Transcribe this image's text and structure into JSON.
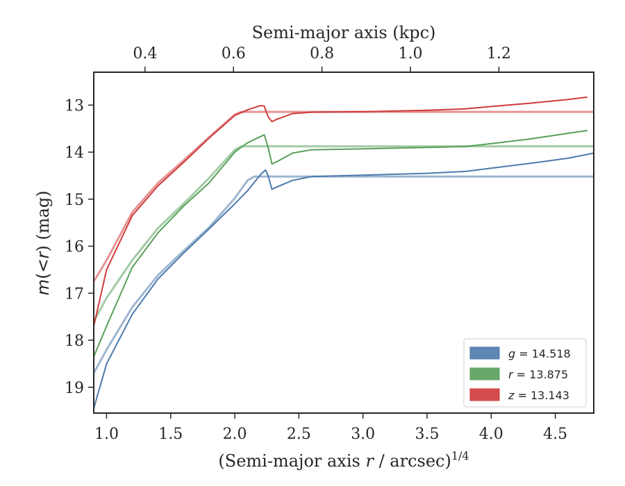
{
  "chart_data": {
    "type": "line",
    "xlabel": "(Semi-major axis r / arcsec)^1/4",
    "xlabel_parts": {
      "prefix": "(Semi-major axis ",
      "var": "r",
      "mid": " / arcsec)",
      "sup": "1/4"
    },
    "ylabel": "m(< r) (mag)",
    "ylabel_parts": {
      "m": "m",
      "lt": "(<",
      "r": "r",
      "rest": ") (mag)"
    },
    "top_xlabel": "Semi-major axis (kpc)",
    "xlim": [
      0.9,
      4.8
    ],
    "ylim": [
      19.55,
      12.3
    ],
    "y_inverted": true,
    "x_ticks": [
      1.0,
      1.5,
      2.0,
      2.5,
      3.0,
      3.5,
      4.0,
      4.5
    ],
    "x_tick_labels": [
      "1.0",
      "1.5",
      "2.0",
      "2.5",
      "3.0",
      "3.5",
      "4.0",
      "4.5"
    ],
    "y_ticks": [
      13,
      14,
      15,
      16,
      17,
      18,
      19
    ],
    "y_tick_labels": [
      "13",
      "14",
      "15",
      "16",
      "17",
      "18",
      "19"
    ],
    "top_ticks": [
      {
        "label": "0.4",
        "x": 1.3
      },
      {
        "label": "0.6",
        "x": 1.99
      },
      {
        "label": "0.8",
        "x": 2.68
      },
      {
        "label": "1.0",
        "x": 3.37
      },
      {
        "label": "1.2",
        "x": 4.06
      }
    ],
    "grid": false,
    "legend": {
      "placement": "lower-right",
      "entries": [
        {
          "band": "g",
          "value": "14.518",
          "color": "#4c7aab"
        },
        {
          "band": "r",
          "value": "13.875",
          "color": "#58a05a"
        },
        {
          "band": "z",
          "value": "13.143",
          "color": "#d03a3a"
        }
      ]
    },
    "series": [
      {
        "name": "g",
        "color": "#4c7aab",
        "data": [
          [
            0.9,
            19.45
          ],
          [
            1.0,
            18.5
          ],
          [
            1.2,
            17.45
          ],
          [
            1.4,
            16.7
          ],
          [
            1.6,
            16.15
          ],
          [
            1.8,
            15.63
          ],
          [
            2.0,
            15.1
          ],
          [
            2.1,
            14.82
          ],
          [
            2.2,
            14.48
          ],
          [
            2.24,
            14.38
          ],
          [
            2.26,
            14.5
          ],
          [
            2.29,
            14.79
          ],
          [
            2.33,
            14.74
          ],
          [
            2.45,
            14.6
          ],
          [
            2.6,
            14.52
          ],
          [
            3.0,
            14.49
          ],
          [
            3.5,
            14.45
          ],
          [
            3.8,
            14.41
          ],
          [
            4.0,
            14.34
          ],
          [
            4.3,
            14.24
          ],
          [
            4.6,
            14.13
          ],
          [
            4.8,
            14.02
          ]
        ],
        "model": [
          [
            0.9,
            18.7
          ],
          [
            1.0,
            18.2
          ],
          [
            1.2,
            17.3
          ],
          [
            1.4,
            16.62
          ],
          [
            1.6,
            16.1
          ],
          [
            1.8,
            15.6
          ],
          [
            2.0,
            14.98
          ],
          [
            2.1,
            14.6
          ],
          [
            2.15,
            14.52
          ],
          [
            2.3,
            14.52
          ],
          [
            4.8,
            14.52
          ]
        ]
      },
      {
        "name": "r",
        "color": "#58a05a",
        "data": [
          [
            0.9,
            18.35
          ],
          [
            1.0,
            17.7
          ],
          [
            1.2,
            16.45
          ],
          [
            1.4,
            15.72
          ],
          [
            1.6,
            15.15
          ],
          [
            1.8,
            14.65
          ],
          [
            2.0,
            14.0
          ],
          [
            2.1,
            13.8
          ],
          [
            2.2,
            13.67
          ],
          [
            2.23,
            13.63
          ],
          [
            2.26,
            13.9
          ],
          [
            2.29,
            14.25
          ],
          [
            2.33,
            14.2
          ],
          [
            2.45,
            14.02
          ],
          [
            2.6,
            13.95
          ],
          [
            3.0,
            13.93
          ],
          [
            3.5,
            13.9
          ],
          [
            3.8,
            13.88
          ],
          [
            4.0,
            13.82
          ],
          [
            4.3,
            13.72
          ],
          [
            4.6,
            13.6
          ],
          [
            4.75,
            13.54
          ]
        ],
        "model": [
          [
            0.9,
            17.6
          ],
          [
            1.0,
            17.1
          ],
          [
            1.2,
            16.3
          ],
          [
            1.4,
            15.62
          ],
          [
            1.6,
            15.1
          ],
          [
            1.8,
            14.55
          ],
          [
            2.0,
            13.95
          ],
          [
            2.05,
            13.875
          ],
          [
            4.8,
            13.875
          ]
        ]
      },
      {
        "name": "z",
        "color": "#d03a3a",
        "data": [
          [
            0.9,
            17.7
          ],
          [
            1.0,
            16.5
          ],
          [
            1.2,
            15.35
          ],
          [
            1.4,
            14.72
          ],
          [
            1.6,
            14.22
          ],
          [
            1.8,
            13.7
          ],
          [
            2.0,
            13.22
          ],
          [
            2.1,
            13.1
          ],
          [
            2.2,
            13.01
          ],
          [
            2.23,
            13.02
          ],
          [
            2.26,
            13.25
          ],
          [
            2.29,
            13.35
          ],
          [
            2.33,
            13.3
          ],
          [
            2.45,
            13.18
          ],
          [
            2.6,
            13.15
          ],
          [
            3.0,
            13.14
          ],
          [
            3.5,
            13.11
          ],
          [
            3.8,
            13.08
          ],
          [
            4.0,
            13.03
          ],
          [
            4.3,
            12.96
          ],
          [
            4.6,
            12.88
          ],
          [
            4.75,
            12.83
          ]
        ],
        "model": [
          [
            0.9,
            16.75
          ],
          [
            1.0,
            16.3
          ],
          [
            1.2,
            15.28
          ],
          [
            1.4,
            14.66
          ],
          [
            1.6,
            14.18
          ],
          [
            1.8,
            13.68
          ],
          [
            2.0,
            13.2
          ],
          [
            2.05,
            13.143
          ],
          [
            4.8,
            13.143
          ]
        ]
      }
    ]
  }
}
